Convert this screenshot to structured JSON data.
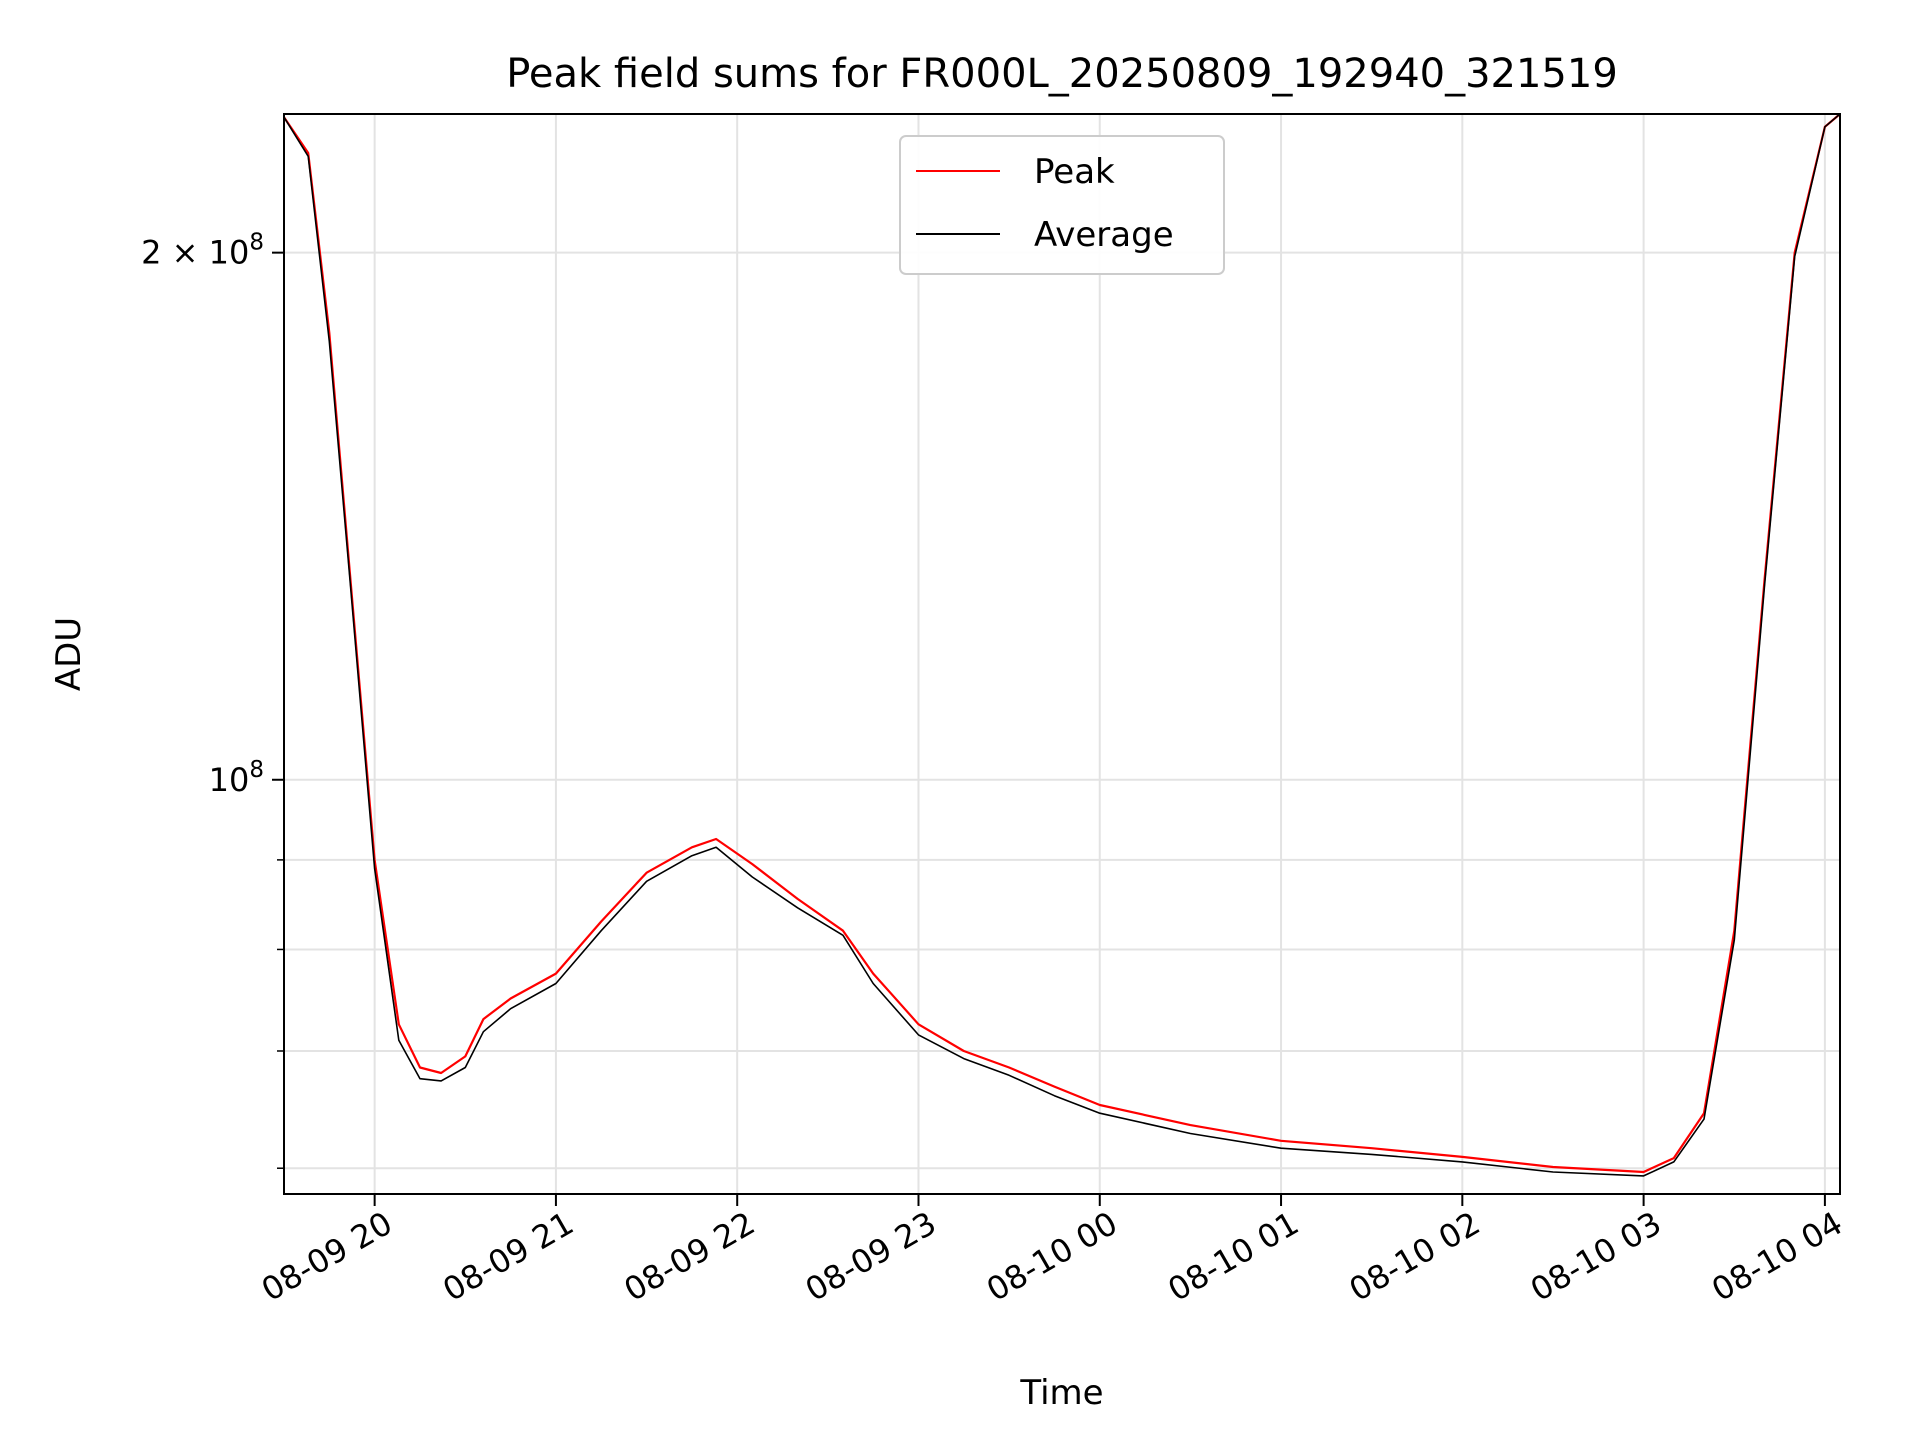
{
  "chart_data": {
    "type": "line",
    "title": "Peak field sums for FR000L_20250809_192940_321519",
    "xlabel": "Time",
    "ylabel": "ADU",
    "x_axis": {
      "kind": "time",
      "range": [
        "2025-08-09 19:30",
        "2025-08-10 04:05"
      ],
      "ticks": [
        {
          "value": "2025-08-09 20:00",
          "label": "08-09 20"
        },
        {
          "value": "2025-08-09 21:00",
          "label": "08-09 21"
        },
        {
          "value": "2025-08-09 22:00",
          "label": "08-09 22"
        },
        {
          "value": "2025-08-09 23:00",
          "label": "08-09 23"
        },
        {
          "value": "2025-08-10 00:00",
          "label": "08-10 00"
        },
        {
          "value": "2025-08-10 01:00",
          "label": "08-10 01"
        },
        {
          "value": "2025-08-10 02:00",
          "label": "08-10 02"
        },
        {
          "value": "2025-08-10 03:00",
          "label": "08-10 03"
        },
        {
          "value": "2025-08-10 04:00",
          "label": "08-10 04"
        }
      ],
      "tick_label_rotation": 30
    },
    "y_axis": {
      "scale": "log",
      "range": [
        58000000,
        240000000
      ],
      "major_ticks": [
        {
          "value": 100000000,
          "base": "10",
          "exp": "8",
          "mult": ""
        },
        {
          "value": 200000000,
          "base": "10",
          "exp": "8",
          "mult": "2 × "
        }
      ],
      "minor_ticks": [
        60000000,
        70000000,
        80000000,
        90000000
      ]
    },
    "grid": true,
    "legend": {
      "placement": "upper-center"
    },
    "series": [
      {
        "name": "Peak",
        "color": "#ff0000",
        "x": [
          "2025-08-09 19:30",
          "2025-08-09 19:38",
          "2025-08-09 19:45",
          "2025-08-09 19:52",
          "2025-08-09 20:00",
          "2025-08-09 20:08",
          "2025-08-09 20:15",
          "2025-08-09 20:22",
          "2025-08-09 20:30",
          "2025-08-09 20:36",
          "2025-08-09 20:45",
          "2025-08-09 21:00",
          "2025-08-09 21:15",
          "2025-08-09 21:30",
          "2025-08-09 21:45",
          "2025-08-09 21:53",
          "2025-08-09 22:05",
          "2025-08-09 22:20",
          "2025-08-09 22:35",
          "2025-08-09 22:45",
          "2025-08-09 23:00",
          "2025-08-09 23:15",
          "2025-08-09 23:30",
          "2025-08-09 23:45",
          "2025-08-10 00:00",
          "2025-08-10 00:30",
          "2025-08-10 01:00",
          "2025-08-10 01:30",
          "2025-08-10 02:00",
          "2025-08-10 02:30",
          "2025-08-10 03:00",
          "2025-08-10 03:10",
          "2025-08-10 03:20",
          "2025-08-10 03:30",
          "2025-08-10 03:40",
          "2025-08-10 03:50",
          "2025-08-10 04:00",
          "2025-08-10 04:05"
        ],
        "y": [
          239000000,
          228000000,
          180000000,
          130000000,
          90000000,
          72500000,
          68500000,
          68000000,
          69500000,
          73000000,
          75000000,
          77500000,
          83000000,
          88500000,
          91500000,
          92500000,
          89500000,
          85500000,
          82000000,
          77500000,
          72500000,
          70000000,
          68500000,
          66800000,
          65200000,
          63500000,
          62200000,
          61600000,
          60900000,
          60100000,
          59700000,
          60800000,
          64500000,
          82000000,
          130000000,
          200000000,
          236000000,
          240000000
        ]
      },
      {
        "name": "Average",
        "color": "#000000",
        "x": [
          "2025-08-09 19:30",
          "2025-08-09 19:38",
          "2025-08-09 19:45",
          "2025-08-09 19:52",
          "2025-08-09 20:00",
          "2025-08-09 20:08",
          "2025-08-09 20:15",
          "2025-08-09 20:22",
          "2025-08-09 20:30",
          "2025-08-09 20:36",
          "2025-08-09 20:45",
          "2025-08-09 21:00",
          "2025-08-09 21:15",
          "2025-08-09 21:30",
          "2025-08-09 21:45",
          "2025-08-09 21:53",
          "2025-08-09 22:05",
          "2025-08-09 22:20",
          "2025-08-09 22:35",
          "2025-08-09 22:45",
          "2025-08-09 23:00",
          "2025-08-09 23:15",
          "2025-08-09 23:30",
          "2025-08-09 23:45",
          "2025-08-10 00:00",
          "2025-08-10 00:30",
          "2025-08-10 01:00",
          "2025-08-10 01:30",
          "2025-08-10 02:00",
          "2025-08-10 02:30",
          "2025-08-10 03:00",
          "2025-08-10 03:10",
          "2025-08-10 03:20",
          "2025-08-10 03:30",
          "2025-08-10 03:40",
          "2025-08-10 03:50",
          "2025-08-10 04:00",
          "2025-08-10 04:05"
        ],
        "y": [
          239000000,
          227000000,
          178000000,
          129000000,
          89000000,
          71000000,
          67500000,
          67300000,
          68500000,
          71800000,
          74000000,
          76500000,
          82000000,
          87500000,
          90500000,
          91500000,
          88000000,
          84500000,
          81500000,
          76500000,
          71500000,
          69300000,
          67800000,
          66000000,
          64500000,
          62800000,
          61600000,
          61100000,
          60500000,
          59700000,
          59400000,
          60500000,
          64000000,
          81000000,
          129000000,
          199000000,
          236000000,
          240000000
        ]
      }
    ]
  }
}
